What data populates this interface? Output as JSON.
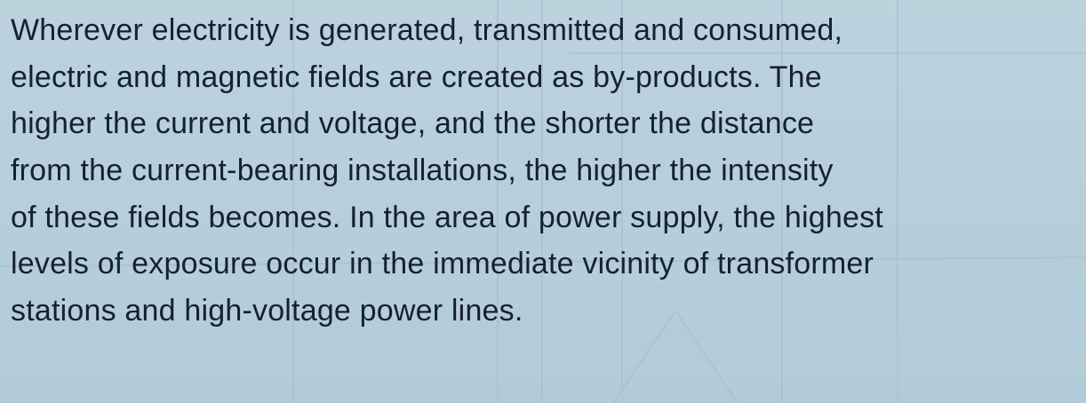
{
  "paragraph": {
    "lines": [
      "Wherever electricity is generated, transmitted and consumed,",
      "electric and magnetic fields are created as by-products. The",
      "higher the current and voltage, and the shorter the distance",
      "from the current-bearing installations, the higher the intensity",
      "of these fields becomes. In the area of power supply, the highest",
      "levels of exposure occur in the immediate vicinity of transformer",
      "stations and high-voltage power lines."
    ]
  }
}
